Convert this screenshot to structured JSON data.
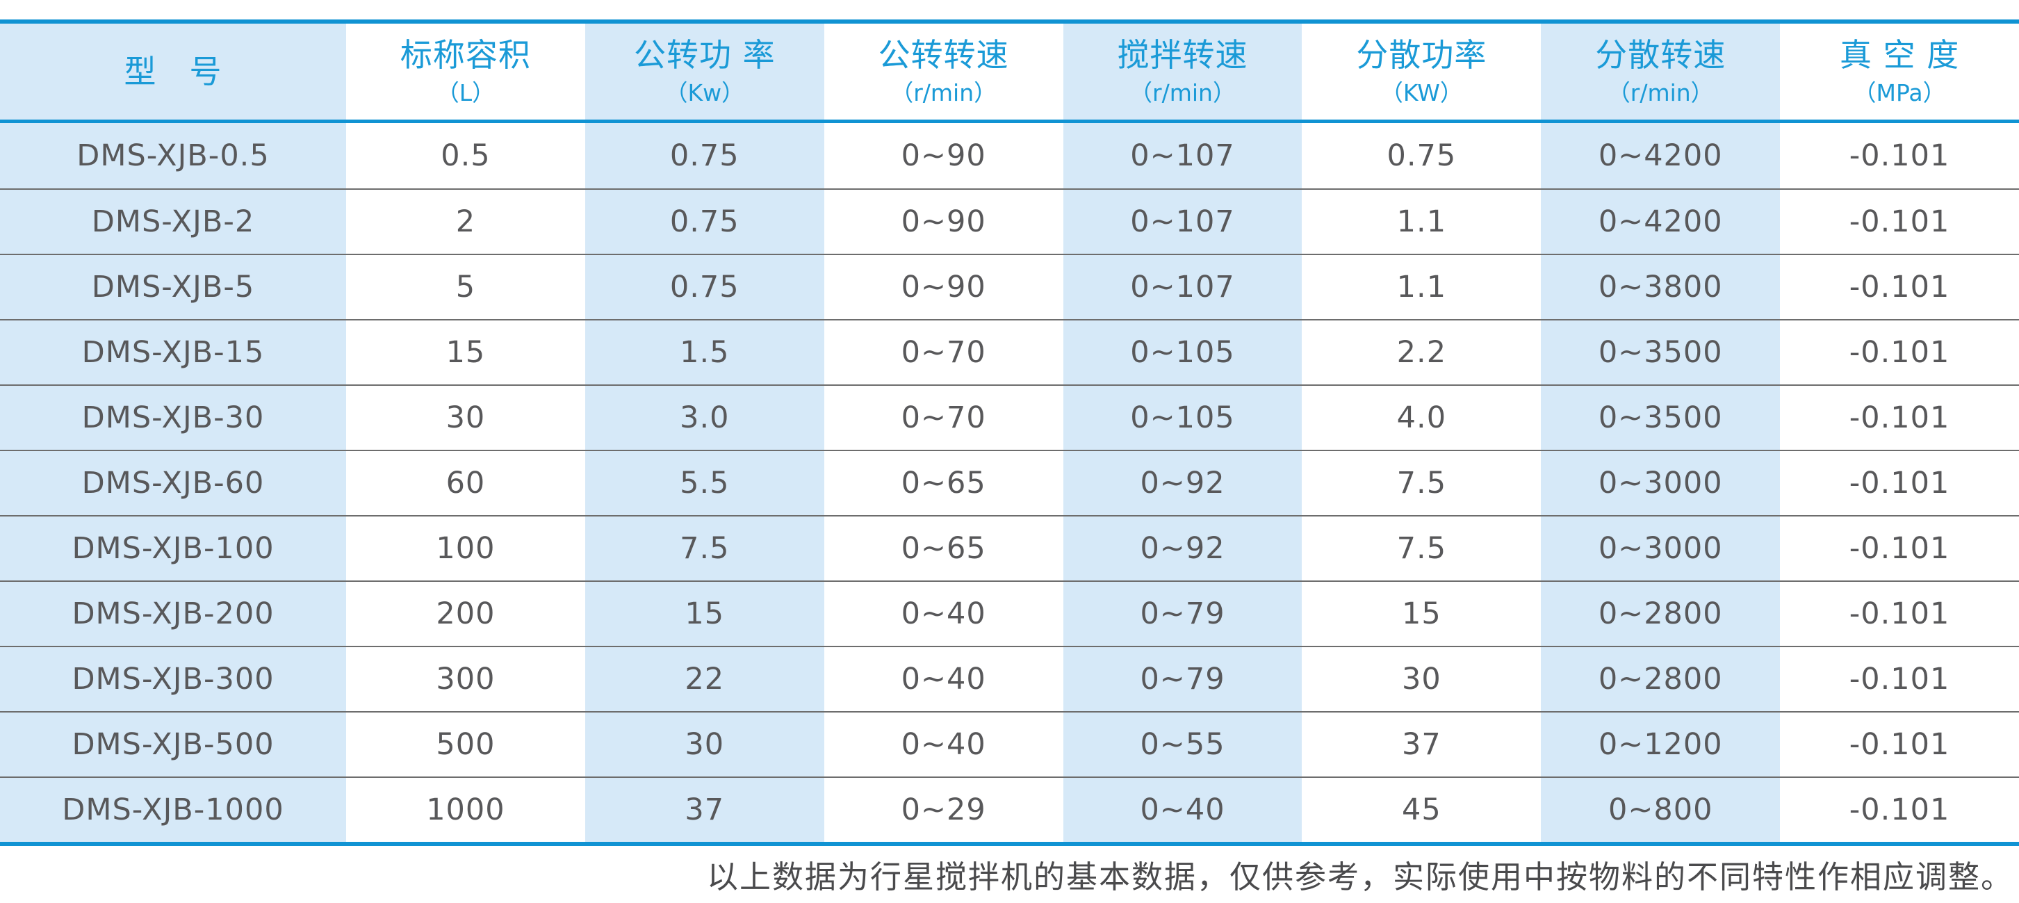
{
  "chart_data": {
    "type": "table",
    "columns": [
      {
        "key": "model",
        "title": "型　号",
        "unit": ""
      },
      {
        "key": "capacity",
        "title": "标称容积",
        "unit": "（L）"
      },
      {
        "key": "rev-power",
        "title": "公转功 率",
        "unit": "（Kw）"
      },
      {
        "key": "rev-speed",
        "title": "公转转速",
        "unit": "（r/min）"
      },
      {
        "key": "stir-speed",
        "title": "搅拌转速",
        "unit": "（r/min）"
      },
      {
        "key": "disp-power",
        "title": "分散功率",
        "unit": "（KW）"
      },
      {
        "key": "disp-speed",
        "title": "分散转速",
        "unit": "（r/min）"
      },
      {
        "key": "vacuum",
        "title": "真 空 度",
        "unit": "（MPa）"
      }
    ],
    "rows": [
      [
        "DMS-XJB-0.5",
        "0.5",
        "0.75",
        "0~90",
        "0~107",
        "0.75",
        "0~4200",
        "-0.101"
      ],
      [
        "DMS-XJB-2",
        "2",
        "0.75",
        "0~90",
        "0~107",
        "1.1",
        "0~4200",
        "-0.101"
      ],
      [
        "DMS-XJB-5",
        "5",
        "0.75",
        "0~90",
        "0~107",
        "1.1",
        "0~3800",
        "-0.101"
      ],
      [
        "DMS-XJB-15",
        "15",
        "1.5",
        "0~70",
        "0~105",
        "2.2",
        "0~3500",
        "-0.101"
      ],
      [
        "DMS-XJB-30",
        "30",
        "3.0",
        "0~70",
        "0~105",
        "4.0",
        "0~3500",
        "-0.101"
      ],
      [
        "DMS-XJB-60",
        "60",
        "5.5",
        "0~65",
        "0~92",
        "7.5",
        "0~3000",
        "-0.101"
      ],
      [
        "DMS-XJB-100",
        "100",
        "7.5",
        "0~65",
        "0~92",
        "7.5",
        "0~3000",
        "-0.101"
      ],
      [
        "DMS-XJB-200",
        "200",
        "15",
        "0~40",
        "0~79",
        "15",
        "0~2800",
        "-0.101"
      ],
      [
        "DMS-XJB-300",
        "300",
        "22",
        "0~40",
        "0~79",
        "30",
        "0~2800",
        "-0.101"
      ],
      [
        "DMS-XJB-500",
        "500",
        "30",
        "0~40",
        "0~55",
        "37",
        "0~1200",
        "-0.101"
      ],
      [
        "DMS-XJB-1000",
        "1000",
        "37",
        "0~29",
        "0~40",
        "45",
        "0~800",
        "-0.101"
      ]
    ],
    "footnote": "以上数据为行星搅拌机的基本数据，仅供参考，实际使用中按物料的不同特性作相应调整。"
  },
  "colors": {
    "accent": "#1093d3",
    "header_text": "#1a9ad7",
    "stripe": "#d6e9f8",
    "body_text": "#58585a",
    "separator": "#6d6d6d",
    "footnote_text": "#4a4a4c"
  }
}
